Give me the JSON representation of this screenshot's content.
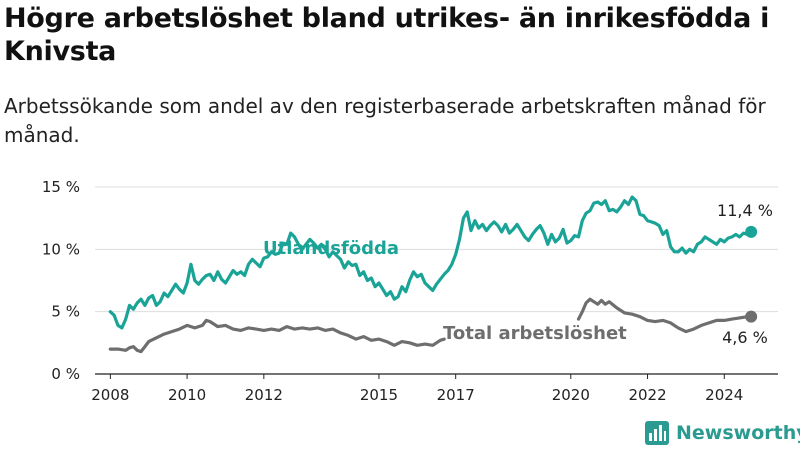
{
  "title": "Högre arbetslöshet bland utrikes- än inrikesfödda i Knivsta",
  "subtitle": "Arbetssökande som andel av den registerbaserade arbetskraften månad för månad.",
  "brand": "Newsworthy",
  "colors": {
    "utlandsfodda": "#1aa397",
    "total": "#6e6e6e",
    "grid": "#dddddd",
    "axis": "#222222"
  },
  "chart_data": {
    "type": "line",
    "xlim": [
      2007.6,
      2025.4
    ],
    "ylim": [
      0,
      15
    ],
    "yticks": [
      {
        "value": 0,
        "label": "0 %"
      },
      {
        "value": 5,
        "label": "5 %"
      },
      {
        "value": 10,
        "label": "10 %"
      },
      {
        "value": 15,
        "label": "15 %"
      }
    ],
    "xticks": [
      {
        "value": 2008,
        "label": "2008"
      },
      {
        "value": 2010,
        "label": "2010"
      },
      {
        "value": 2012,
        "label": "2012"
      },
      {
        "value": 2015,
        "label": "2015"
      },
      {
        "value": 2017,
        "label": "2017"
      },
      {
        "value": 2020,
        "label": "2020"
      },
      {
        "value": 2022,
        "label": "2022"
      },
      {
        "value": 2024,
        "label": "2024"
      }
    ],
    "series": [
      {
        "name": "Utlandsfödda",
        "key": "utlandsfodda",
        "end_label": "11,4 %",
        "segments": [
          [
            [
              2008.0,
              5.0
            ],
            [
              2008.1,
              4.7
            ],
            [
              2008.2,
              3.9
            ],
            [
              2008.3,
              3.7
            ],
            [
              2008.4,
              4.4
            ],
            [
              2008.5,
              5.5
            ],
            [
              2008.6,
              5.2
            ],
            [
              2008.7,
              5.7
            ],
            [
              2008.8,
              6.0
            ],
            [
              2008.9,
              5.5
            ],
            [
              2009.0,
              6.1
            ],
            [
              2009.1,
              6.3
            ],
            [
              2009.2,
              5.5
            ],
            [
              2009.3,
              5.8
            ],
            [
              2009.4,
              6.5
            ],
            [
              2009.5,
              6.2
            ],
            [
              2009.6,
              6.7
            ],
            [
              2009.7,
              7.2
            ],
            [
              2009.8,
              6.8
            ],
            [
              2009.9,
              6.5
            ],
            [
              2010.0,
              7.3
            ],
            [
              2010.1,
              8.8
            ],
            [
              2010.2,
              7.5
            ],
            [
              2010.3,
              7.2
            ],
            [
              2010.4,
              7.6
            ],
            [
              2010.5,
              7.9
            ],
            [
              2010.6,
              8.0
            ],
            [
              2010.7,
              7.5
            ],
            [
              2010.8,
              8.2
            ],
            [
              2010.9,
              7.6
            ],
            [
              2011.0,
              7.3
            ],
            [
              2011.1,
              7.8
            ],
            [
              2011.2,
              8.3
            ],
            [
              2011.3,
              8.0
            ],
            [
              2011.4,
              8.2
            ],
            [
              2011.5,
              7.9
            ],
            [
              2011.6,
              8.8
            ],
            [
              2011.7,
              9.2
            ],
            [
              2011.8,
              8.9
            ],
            [
              2011.9,
              8.6
            ],
            [
              2012.0,
              9.3
            ],
            [
              2012.1,
              9.4
            ],
            [
              2012.2,
              9.8
            ],
            [
              2012.3,
              9.6
            ],
            [
              2012.4,
              9.7
            ],
            [
              2012.5,
              10.5
            ],
            [
              2012.6,
              10.4
            ],
            [
              2012.7,
              11.3
            ],
            [
              2012.8,
              11.0
            ],
            [
              2012.9,
              10.4
            ],
            [
              2013.0,
              10.0
            ],
            [
              2013.1,
              10.4
            ],
            [
              2013.2,
              10.8
            ],
            [
              2013.3,
              10.5
            ],
            [
              2013.4,
              10.1
            ],
            [
              2013.5,
              10.4
            ],
            [
              2013.6,
              10.0
            ],
            [
              2013.7,
              9.4
            ],
            [
              2013.8,
              9.8
            ],
            [
              2013.9,
              9.5
            ],
            [
              2014.0,
              9.2
            ],
            [
              2014.1,
              8.5
            ],
            [
              2014.2,
              9.0
            ],
            [
              2014.3,
              8.7
            ],
            [
              2014.4,
              8.8
            ],
            [
              2014.5,
              7.9
            ],
            [
              2014.6,
              8.2
            ],
            [
              2014.7,
              7.5
            ],
            [
              2014.8,
              7.7
            ],
            [
              2014.9,
              7.0
            ],
            [
              2015.0,
              7.3
            ],
            [
              2015.1,
              6.8
            ],
            [
              2015.2,
              6.3
            ],
            [
              2015.3,
              6.6
            ],
            [
              2015.4,
              6.0
            ],
            [
              2015.5,
              6.2
            ],
            [
              2015.6,
              7.0
            ],
            [
              2015.7,
              6.6
            ],
            [
              2015.8,
              7.5
            ],
            [
              2015.9,
              8.2
            ],
            [
              2016.0,
              7.8
            ],
            [
              2016.1,
              8.0
            ],
            [
              2016.2,
              7.3
            ],
            [
              2016.3,
              7.0
            ],
            [
              2016.4,
              6.7
            ],
            [
              2016.5,
              7.2
            ],
            [
              2016.6,
              7.6
            ],
            [
              2016.7,
              8.0
            ],
            [
              2016.8,
              8.3
            ],
            [
              2016.9,
              8.8
            ],
            [
              2017.0,
              9.6
            ],
            [
              2017.1,
              10.8
            ],
            [
              2017.2,
              12.5
            ],
            [
              2017.3,
              13.0
            ],
            [
              2017.4,
              11.5
            ],
            [
              2017.5,
              12.3
            ],
            [
              2017.6,
              11.7
            ],
            [
              2017.7,
              12.0
            ],
            [
              2017.8,
              11.5
            ],
            [
              2017.9,
              11.9
            ],
            [
              2018.0,
              12.2
            ],
            [
              2018.1,
              11.9
            ],
            [
              2018.2,
              11.4
            ],
            [
              2018.3,
              12.0
            ],
            [
              2018.4,
              11.3
            ],
            [
              2018.5,
              11.6
            ],
            [
              2018.6,
              12.0
            ],
            [
              2018.7,
              11.5
            ],
            [
              2018.8,
              11.0
            ],
            [
              2018.9,
              10.7
            ],
            [
              2019.0,
              11.2
            ],
            [
              2019.1,
              11.6
            ],
            [
              2019.2,
              11.9
            ],
            [
              2019.3,
              11.3
            ],
            [
              2019.4,
              10.4
            ],
            [
              2019.5,
              11.2
            ],
            [
              2019.6,
              10.6
            ],
            [
              2019.7,
              10.9
            ],
            [
              2019.8,
              11.6
            ],
            [
              2019.9,
              10.5
            ],
            [
              2020.0,
              10.7
            ],
            [
              2020.1,
              11.1
            ],
            [
              2020.2,
              11.0
            ],
            [
              2020.3,
              12.3
            ],
            [
              2020.4,
              12.9
            ],
            [
              2020.5,
              13.1
            ],
            [
              2020.6,
              13.7
            ],
            [
              2020.7,
              13.8
            ],
            [
              2020.8,
              13.6
            ],
            [
              2020.9,
              13.9
            ],
            [
              2021.0,
              13.1
            ],
            [
              2021.1,
              13.2
            ],
            [
              2021.2,
              13.0
            ],
            [
              2021.3,
              13.4
            ],
            [
              2021.4,
              13.9
            ],
            [
              2021.5,
              13.6
            ],
            [
              2021.6,
              14.2
            ],
            [
              2021.7,
              13.9
            ],
            [
              2021.8,
              12.8
            ],
            [
              2021.9,
              12.7
            ],
            [
              2022.0,
              12.3
            ],
            [
              2022.1,
              12.2
            ],
            [
              2022.2,
              12.1
            ],
            [
              2022.3,
              11.9
            ],
            [
              2022.4,
              11.2
            ],
            [
              2022.5,
              11.5
            ],
            [
              2022.6,
              10.2
            ],
            [
              2022.7,
              9.8
            ],
            [
              2022.8,
              9.8
            ],
            [
              2022.9,
              10.1
            ],
            [
              2023.0,
              9.7
            ],
            [
              2023.1,
              10.0
            ],
            [
              2023.2,
              9.8
            ],
            [
              2023.3,
              10.4
            ],
            [
              2023.4,
              10.6
            ],
            [
              2023.5,
              11.0
            ],
            [
              2023.6,
              10.8
            ],
            [
              2023.7,
              10.6
            ],
            [
              2023.8,
              10.4
            ],
            [
              2023.9,
              10.8
            ],
            [
              2024.0,
              10.6
            ],
            [
              2024.1,
              10.9
            ],
            [
              2024.2,
              11.0
            ],
            [
              2024.3,
              11.2
            ],
            [
              2024.4,
              11.0
            ],
            [
              2024.5,
              11.3
            ],
            [
              2024.6,
              11.2
            ],
            [
              2024.7,
              11.4
            ]
          ]
        ]
      },
      {
        "name": "Total arbetslöshet",
        "key": "total",
        "end_label": "4,6 %",
        "segments": [
          [
            [
              2008.0,
              2.0
            ],
            [
              2008.2,
              2.0
            ],
            [
              2008.4,
              1.9
            ],
            [
              2008.5,
              2.1
            ],
            [
              2008.6,
              2.2
            ],
            [
              2008.7,
              1.9
            ],
            [
              2008.8,
              1.8
            ],
            [
              2008.9,
              2.2
            ],
            [
              2009.0,
              2.6
            ],
            [
              2009.2,
              2.9
            ],
            [
              2009.4,
              3.2
            ],
            [
              2009.6,
              3.4
            ],
            [
              2009.8,
              3.6
            ],
            [
              2010.0,
              3.9
            ],
            [
              2010.2,
              3.7
            ],
            [
              2010.4,
              3.9
            ],
            [
              2010.5,
              4.3
            ],
            [
              2010.6,
              4.2
            ],
            [
              2010.8,
              3.8
            ],
            [
              2011.0,
              3.9
            ],
            [
              2011.2,
              3.6
            ],
            [
              2011.4,
              3.5
            ],
            [
              2011.6,
              3.7
            ],
            [
              2011.8,
              3.6
            ],
            [
              2012.0,
              3.5
            ],
            [
              2012.2,
              3.6
            ],
            [
              2012.4,
              3.5
            ],
            [
              2012.6,
              3.8
            ],
            [
              2012.8,
              3.6
            ],
            [
              2013.0,
              3.7
            ],
            [
              2013.2,
              3.6
            ],
            [
              2013.4,
              3.7
            ],
            [
              2013.6,
              3.5
            ],
            [
              2013.8,
              3.6
            ],
            [
              2014.0,
              3.3
            ],
            [
              2014.2,
              3.1
            ],
            [
              2014.4,
              2.8
            ],
            [
              2014.6,
              3.0
            ],
            [
              2014.8,
              2.7
            ],
            [
              2015.0,
              2.8
            ],
            [
              2015.2,
              2.6
            ],
            [
              2015.4,
              2.3
            ],
            [
              2015.6,
              2.6
            ],
            [
              2015.8,
              2.5
            ],
            [
              2016.0,
              2.3
            ],
            [
              2016.2,
              2.4
            ],
            [
              2016.4,
              2.3
            ],
            [
              2016.5,
              2.5
            ],
            [
              2016.6,
              2.7
            ],
            [
              2016.7,
              2.8
            ]
          ],
          [
            [
              2020.2,
              4.4
            ],
            [
              2020.3,
              5.0
            ],
            [
              2020.4,
              5.7
            ],
            [
              2020.5,
              6.0
            ],
            [
              2020.6,
              5.8
            ],
            [
              2020.7,
              5.6
            ],
            [
              2020.8,
              5.9
            ],
            [
              2020.9,
              5.6
            ],
            [
              2021.0,
              5.8
            ],
            [
              2021.2,
              5.3
            ],
            [
              2021.4,
              4.9
            ],
            [
              2021.6,
              4.8
            ],
            [
              2021.8,
              4.6
            ],
            [
              2022.0,
              4.3
            ],
            [
              2022.2,
              4.2
            ],
            [
              2022.4,
              4.3
            ],
            [
              2022.6,
              4.1
            ],
            [
              2022.8,
              3.7
            ],
            [
              2023.0,
              3.4
            ],
            [
              2023.2,
              3.6
            ],
            [
              2023.4,
              3.9
            ],
            [
              2023.6,
              4.1
            ],
            [
              2023.8,
              4.3
            ],
            [
              2024.0,
              4.3
            ],
            [
              2024.2,
              4.4
            ],
            [
              2024.4,
              4.5
            ],
            [
              2024.6,
              4.6
            ],
            [
              2024.7,
              4.6
            ]
          ]
        ]
      }
    ],
    "labels": {
      "utlandsfodda": "Utlandsfödda",
      "total": "Total arbetslöshet"
    }
  }
}
